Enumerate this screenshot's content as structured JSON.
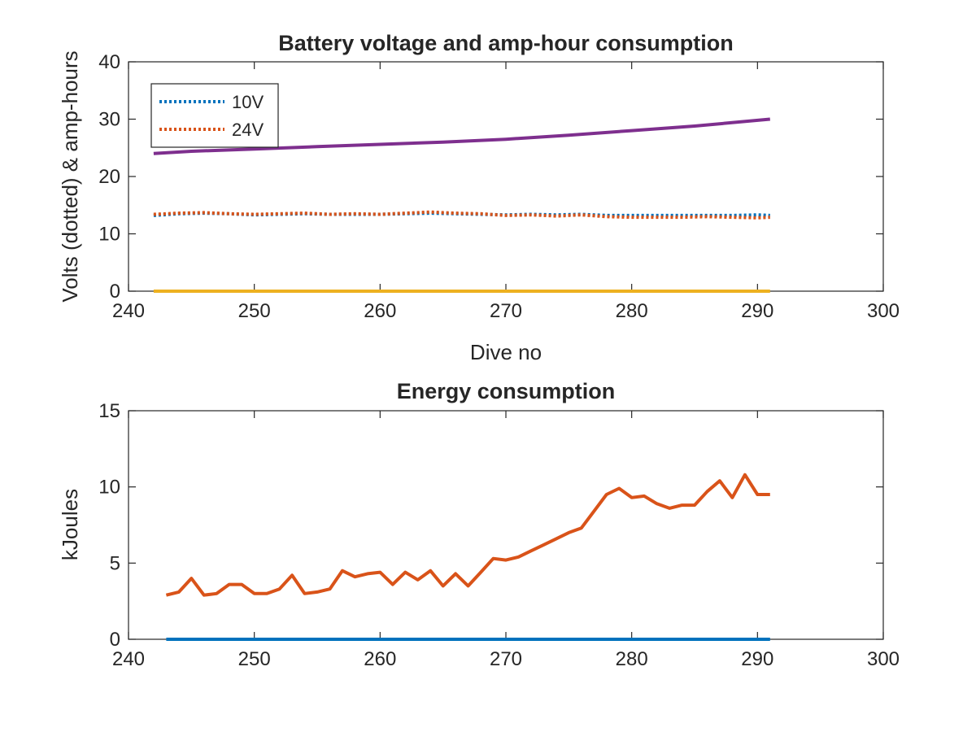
{
  "chart_data": [
    {
      "type": "line",
      "title": "Battery voltage and amp-hour consumption",
      "xlabel": "Dive no",
      "ylabel": "Volts (dotted) & amp-hours",
      "xlim": [
        240,
        300
      ],
      "ylim": [
        0,
        40
      ],
      "xticks": [
        240,
        250,
        260,
        270,
        280,
        290,
        300
      ],
      "yticks": [
        0,
        10,
        20,
        30,
        40
      ],
      "grid": false,
      "legend_position": "top-left",
      "series": [
        {
          "name": "10V",
          "style": "dotted",
          "color": "#0072BD",
          "x": [
            242,
            244,
            246,
            248,
            250,
            252,
            254,
            256,
            258,
            260,
            262,
            264,
            266,
            268,
            270,
            272,
            274,
            276,
            278,
            280,
            282,
            284,
            286,
            288,
            290,
            291
          ],
          "y": [
            13.2,
            13.5,
            13.6,
            13.5,
            13.3,
            13.4,
            13.5,
            13.4,
            13.4,
            13.4,
            13.5,
            13.6,
            13.5,
            13.4,
            13.3,
            13.4,
            13.3,
            13.4,
            13.2,
            13.2,
            13.2,
            13.2,
            13.2,
            13.2,
            13.3,
            13.2
          ]
        },
        {
          "name": "24V",
          "style": "dotted",
          "color": "#D95319",
          "x": [
            242,
            244,
            246,
            248,
            250,
            252,
            254,
            256,
            258,
            260,
            262,
            264,
            266,
            268,
            270,
            272,
            274,
            276,
            278,
            280,
            282,
            284,
            286,
            288,
            290,
            291
          ],
          "y": [
            13.4,
            13.6,
            13.7,
            13.5,
            13.4,
            13.5,
            13.6,
            13.4,
            13.5,
            13.4,
            13.6,
            13.8,
            13.6,
            13.5,
            13.2,
            13.3,
            13.1,
            13.3,
            13.0,
            12.9,
            12.9,
            12.9,
            13.0,
            12.9,
            12.8,
            12.9
          ]
        },
        {
          "style": "solid",
          "color": "#7E2F8E",
          "x": [
            242,
            245,
            250,
            255,
            260,
            265,
            270,
            275,
            280,
            285,
            291
          ],
          "y": [
            24.0,
            24.4,
            24.8,
            25.2,
            25.6,
            26.0,
            26.5,
            27.2,
            28.0,
            28.8,
            30.0
          ]
        },
        {
          "style": "solid",
          "color": "#EDB120",
          "x": [
            242,
            291
          ],
          "y": [
            0,
            0
          ]
        }
      ]
    },
    {
      "type": "line",
      "title": "Energy consumption",
      "xlabel": "",
      "ylabel": "kJoules",
      "xlim": [
        240,
        300
      ],
      "ylim": [
        0,
        15
      ],
      "xticks": [
        240,
        250,
        260,
        270,
        280,
        290,
        300
      ],
      "yticks": [
        0,
        5,
        10,
        15
      ],
      "grid": false,
      "series": [
        {
          "style": "solid",
          "color": "#D95319",
          "x": [
            243,
            244,
            245,
            246,
            247,
            248,
            249,
            250,
            251,
            252,
            253,
            254,
            255,
            256,
            257,
            258,
            259,
            260,
            261,
            262,
            263,
            264,
            265,
            266,
            267,
            268,
            269,
            270,
            271,
            272,
            273,
            274,
            275,
            276,
            277,
            278,
            279,
            280,
            281,
            282,
            283,
            284,
            285,
            286,
            287,
            288,
            289,
            290,
            291
          ],
          "y": [
            2.9,
            3.1,
            4.0,
            2.9,
            3.0,
            3.6,
            3.6,
            3.0,
            3.0,
            3.3,
            4.2,
            3.0,
            3.1,
            3.3,
            4.5,
            4.1,
            4.3,
            4.4,
            3.6,
            4.4,
            3.9,
            4.5,
            3.5,
            4.3,
            3.5,
            4.4,
            5.3,
            5.2,
            5.4,
            5.8,
            6.2,
            6.6,
            7.0,
            7.3,
            8.4,
            9.5,
            9.9,
            9.3,
            9.4,
            8.9,
            8.6,
            8.8,
            8.8,
            9.7,
            10.4,
            9.3,
            10.8,
            9.5,
            9.5
          ]
        },
        {
          "style": "solid",
          "color": "#0072BD",
          "x": [
            243,
            291
          ],
          "y": [
            0,
            0
          ]
        }
      ]
    }
  ]
}
